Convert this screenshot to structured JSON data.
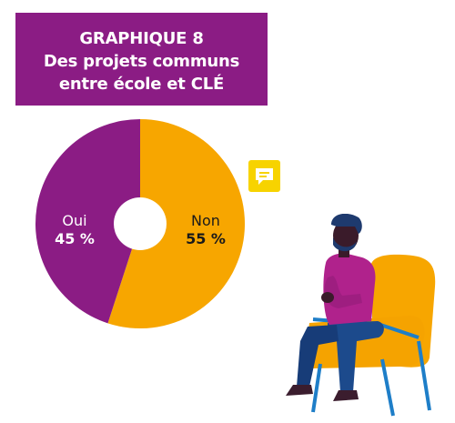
{
  "header": {
    "title": "GRAPHIQUE 8",
    "subtitle_line1": "Des projets communs",
    "subtitle_line2": "entre école et CLÉ"
  },
  "colors": {
    "purple": "#8b1c84",
    "orange": "#f7a600",
    "yellow": "#f7d300",
    "white": "#ffffff"
  },
  "icons": [
    "speech-bubble-icon",
    "seated-person-illustration"
  ],
  "chart_data": {
    "type": "pie",
    "donut": true,
    "categories": [
      "Oui",
      "Non"
    ],
    "values": [
      45,
      55
    ],
    "value_labels": [
      "45 %",
      "55 %"
    ],
    "colors": [
      "#8b1c84",
      "#f7a600"
    ],
    "title": "GRAPHIQUE 8",
    "subtitle": "Des projets communs entre école et CLÉ"
  }
}
